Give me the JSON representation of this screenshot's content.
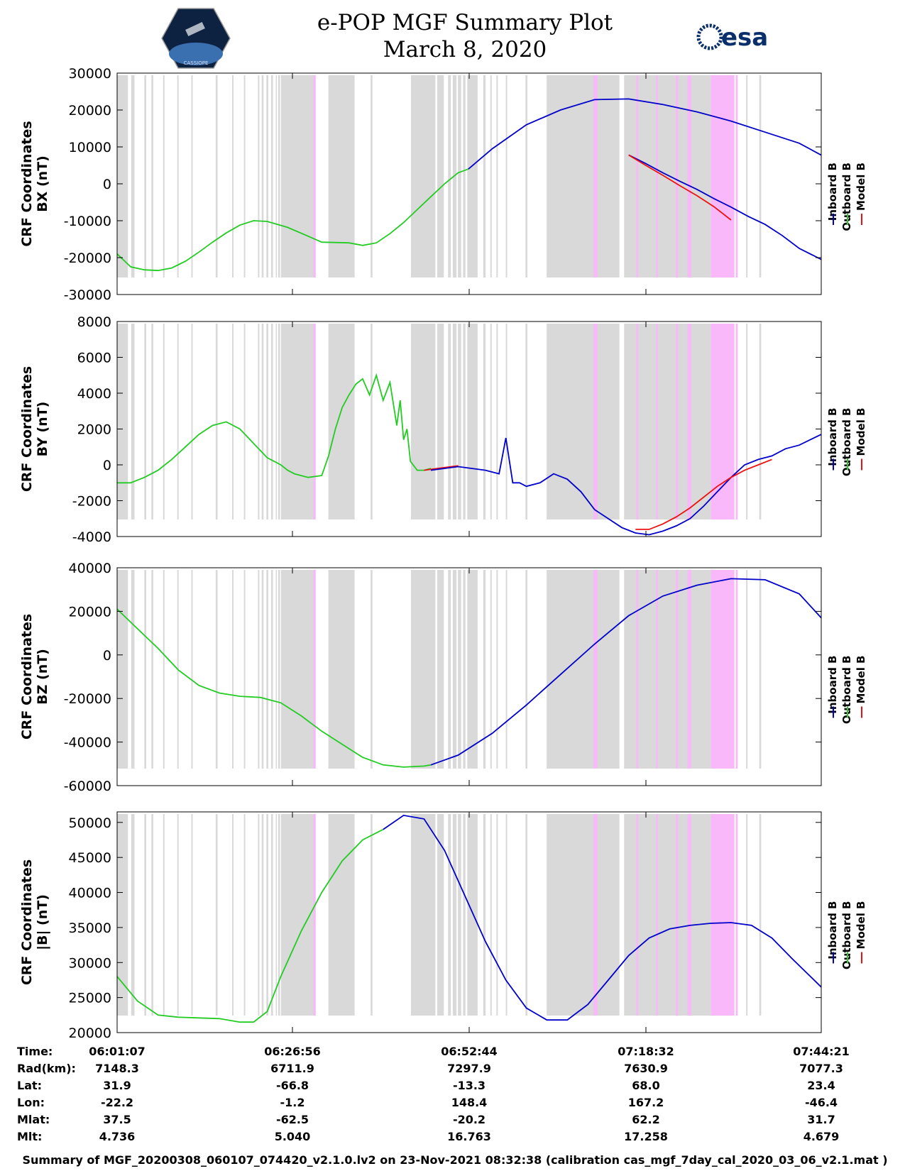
{
  "header": {
    "title_line1": "e-POP MGF Summary Plot",
    "title_line2": "March 8, 2020",
    "logo_left": "CASSIOPE",
    "logo_right": "esa"
  },
  "colors": {
    "inboard": "#0000cc",
    "outboard": "#22cc22",
    "model": "#ee1111",
    "gap_gray": "#d9d9d9",
    "gap_pink": "#f9b8f9"
  },
  "chart_data": [
    {
      "type": "line",
      "panel": "BX",
      "ylabel_line1": "CRF Coordinates",
      "ylabel_line2": "BX (nT)",
      "ylim": [
        -30000,
        30000
      ],
      "yticks": [
        30000,
        20000,
        10000,
        0,
        -10000,
        -20000,
        -30000
      ],
      "ytick_labels": [
        "30000",
        "20000",
        "10000",
        "0",
        "-10000",
        "-20000",
        "-30000"
      ],
      "xlim_minutes": [
        0,
        103.23
      ],
      "legend": [
        "Inboard B",
        "Outboard B",
        "Model B"
      ],
      "series": [
        {
          "name": "Outboard B",
          "color": "outboard",
          "t": [
            0,
            2,
            4,
            6,
            8,
            10,
            12,
            14,
            16,
            18,
            20,
            22,
            25,
            28,
            30,
            32,
            34,
            36,
            38,
            40,
            42,
            44,
            46,
            48,
            50,
            51.5
          ],
          "values": [
            -19000,
            -22500,
            -23300,
            -23500,
            -22800,
            -21000,
            -18500,
            -15800,
            -13300,
            -11200,
            -10000,
            -10200,
            -11800,
            -14200,
            -15800,
            -15900,
            -16000,
            -16700,
            -16000,
            -13500,
            -10500,
            -7000,
            -3500,
            0,
            3000,
            4000
          ]
        },
        {
          "name": "Inboard B",
          "color": "inboard",
          "t": [
            51.5,
            55,
            60,
            65,
            70,
            75,
            80,
            85,
            90,
            95,
            100,
            103.2
          ],
          "values": [
            4000,
            9500,
            16000,
            20000,
            22800,
            23000,
            21500,
            19500,
            17000,
            14000,
            11000,
            7800
          ]
        },
        {
          "name": "Inboard B",
          "color": "inboard",
          "t": [
            75,
            77.5,
            80,
            82.5,
            85,
            87.5,
            90,
            92.5,
            95,
            97.5,
            100,
            103.23
          ],
          "values": [
            7800,
            5500,
            3000,
            700,
            -1500,
            -4000,
            -6300,
            -8800,
            -11000,
            -14000,
            -17500,
            -20500
          ]
        },
        {
          "name": "Model B",
          "color": "model",
          "t": [
            75,
            77.5,
            80,
            82.5,
            85,
            87.5,
            90
          ],
          "values": [
            7800,
            5000,
            2300,
            -500,
            -3200,
            -6200,
            -9800
          ]
        }
      ]
    },
    {
      "type": "line",
      "panel": "BY",
      "ylabel_line1": "CRF Coordinates",
      "ylabel_line2": "BY (nT)",
      "ylim": [
        -4000,
        8000
      ],
      "yticks": [
        8000,
        6000,
        4000,
        2000,
        0,
        -2000,
        -4000
      ],
      "ytick_labels": [
        "8000",
        "6000",
        "4000",
        "2000",
        "0",
        "-2000",
        "-4000"
      ],
      "xlim_minutes": [
        0,
        103.23
      ],
      "legend": [
        "Inboard B",
        "Outboard B",
        "Model B"
      ],
      "series": [
        {
          "name": "Outboard B",
          "color": "outboard",
          "t": [
            0,
            2,
            4,
            6,
            8,
            10,
            12,
            14,
            16,
            18,
            20,
            22,
            24,
            25,
            26,
            28,
            30,
            31,
            32,
            33,
            34,
            35,
            36,
            37,
            38,
            39,
            40,
            41,
            41.5,
            42,
            42.5,
            43,
            44,
            45,
            46
          ],
          "values": [
            -1000,
            -1000,
            -700,
            -300,
            300,
            1000,
            1700,
            2200,
            2400,
            2000,
            1200,
            400,
            0,
            -300,
            -500,
            -700,
            -600,
            500,
            2000,
            3200,
            3900,
            4500,
            4800,
            3900,
            5000,
            3600,
            4600,
            2200,
            3600,
            1400,
            2000,
            200,
            -300,
            -300,
            -200
          ]
        },
        {
          "name": "Model B",
          "color": "model",
          "t": [
            45,
            47,
            49,
            50
          ],
          "values": [
            -300,
            -200,
            -100,
            -50
          ]
        },
        {
          "name": "Inboard B",
          "color": "inboard",
          "t": [
            46,
            50,
            54,
            56,
            57,
            58,
            59,
            60,
            62,
            64,
            66,
            68,
            70,
            72,
            74,
            76,
            78,
            80,
            82,
            84,
            86,
            88,
            90,
            92,
            94,
            96,
            98,
            100,
            103.23
          ],
          "values": [
            -300,
            -100,
            -300,
            -500,
            1500,
            -1000,
            -1000,
            -1200,
            -1000,
            -500,
            -800,
            -1500,
            -2500,
            -3000,
            -3500,
            -3800,
            -3900,
            -3700,
            -3400,
            -3000,
            -2300,
            -1500,
            -700,
            0,
            300,
            500,
            900,
            1100,
            1700
          ]
        },
        {
          "name": "Model B",
          "color": "model",
          "t": [
            76,
            78,
            80,
            82,
            84,
            86,
            88,
            90,
            92,
            94,
            96
          ],
          "values": [
            -3600,
            -3600,
            -3300,
            -2900,
            -2400,
            -1800,
            -1200,
            -700,
            -300,
            0,
            300
          ]
        }
      ]
    },
    {
      "type": "line",
      "panel": "BZ",
      "ylabel_line1": "CRF Coordinates",
      "ylabel_line2": "BZ (nT)",
      "ylim": [
        -60000,
        40000
      ],
      "yticks": [
        40000,
        20000,
        0,
        -20000,
        -40000,
        -60000
      ],
      "ytick_labels": [
        "40000",
        "20000",
        "0",
        "-20000",
        "-40000",
        "-60000"
      ],
      "xlim_minutes": [
        0,
        103.23
      ],
      "legend": [
        "Inboard B",
        "Outboard B",
        "Model B"
      ],
      "series": [
        {
          "name": "Outboard B",
          "color": "outboard",
          "t": [
            0,
            3,
            6,
            9,
            12,
            15,
            18,
            21,
            24,
            27,
            30,
            33,
            36,
            39,
            42,
            45,
            46
          ],
          "values": [
            21000,
            12000,
            3000,
            -7000,
            -14000,
            -17500,
            -19000,
            -19500,
            -22000,
            -28000,
            -35000,
            -41000,
            -47000,
            -50500,
            -51500,
            -51000,
            -50500
          ]
        },
        {
          "name": "Inboard B",
          "color": "inboard",
          "t": [
            46,
            50,
            55,
            60,
            65,
            70,
            75,
            80,
            85,
            90,
            95,
            100,
            103.23
          ],
          "values": [
            -50500,
            -46000,
            -36000,
            -23000,
            -9000,
            5000,
            18000,
            27000,
            32000,
            35000,
            34500,
            28000,
            17000
          ]
        }
      ]
    },
    {
      "type": "line",
      "panel": "|B|",
      "ylabel_line1": "CRF Coordinates",
      "ylabel_line2": "|B| (nT)",
      "ylim": [
        20000,
        51500
      ],
      "yticks": [
        50000,
        45000,
        40000,
        35000,
        30000,
        25000,
        20000
      ],
      "ytick_labels": [
        "50000",
        "45000",
        "40000",
        "35000",
        "30000",
        "25000",
        "20000"
      ],
      "xlim_minutes": [
        0,
        103.23
      ],
      "legend": [
        "Inboard B",
        "Outboard B",
        "Model B"
      ],
      "series": [
        {
          "name": "Outboard B",
          "color": "outboard",
          "t": [
            0,
            3,
            6,
            9,
            12,
            15,
            18,
            20,
            22,
            24,
            27,
            30,
            33,
            36,
            39
          ],
          "values": [
            28000,
            24500,
            22500,
            22200,
            22100,
            22000,
            21500,
            21500,
            23000,
            28000,
            34500,
            40000,
            44500,
            47500,
            49000
          ]
        },
        {
          "name": "Inboard B",
          "color": "inboard",
          "t": [
            39,
            42,
            45,
            48,
            51,
            54,
            57,
            60,
            63,
            66,
            69,
            72,
            75,
            78,
            81,
            84,
            87,
            90,
            93,
            96,
            99,
            103.23
          ],
          "values": [
            49000,
            51000,
            50500,
            46000,
            39500,
            33000,
            27500,
            23500,
            21800,
            21800,
            24000,
            27500,
            31000,
            33500,
            34800,
            35300,
            35600,
            35700,
            35300,
            33500,
            30500,
            26500
          ]
        }
      ]
    }
  ],
  "x_axis": {
    "ticks": [
      {
        "time": "06:01:07",
        "rad": "7148.3",
        "lat": "31.9",
        "lon": "-22.2",
        "mlat": "37.5",
        "mlt": "4.736"
      },
      {
        "time": "06:26:56",
        "rad": "6711.9",
        "lat": "-66.8",
        "lon": "-1.2",
        "mlat": "-62.5",
        "mlt": "5.040"
      },
      {
        "time": "06:52:44",
        "rad": "7297.9",
        "lat": "-13.3",
        "lon": "148.4",
        "mlat": "-20.2",
        "mlt": "16.763"
      },
      {
        "time": "07:18:32",
        "rad": "7630.9",
        "lat": "68.0",
        "lon": "167.2",
        "mlat": "62.2",
        "mlt": "17.258"
      },
      {
        "time": "07:44:21",
        "rad": "7077.3",
        "lat": "23.4",
        "lon": "-46.4",
        "mlat": "31.7",
        "mlt": "4.679"
      }
    ],
    "row_labels": {
      "time": "Time:",
      "rad": "Rad(km):",
      "lat": "Lat:",
      "lon": "Lon:",
      "mlat": "Mlat:",
      "mlt": "Mlt:"
    }
  },
  "footer": "Summary of MGF_20200308_060107_074420_v2.1.0.lv2 on 23-Nov-2021 08:32:38 (calibration cas_mgf_7day_cal_2020_03_06_v2.1.mat )"
}
